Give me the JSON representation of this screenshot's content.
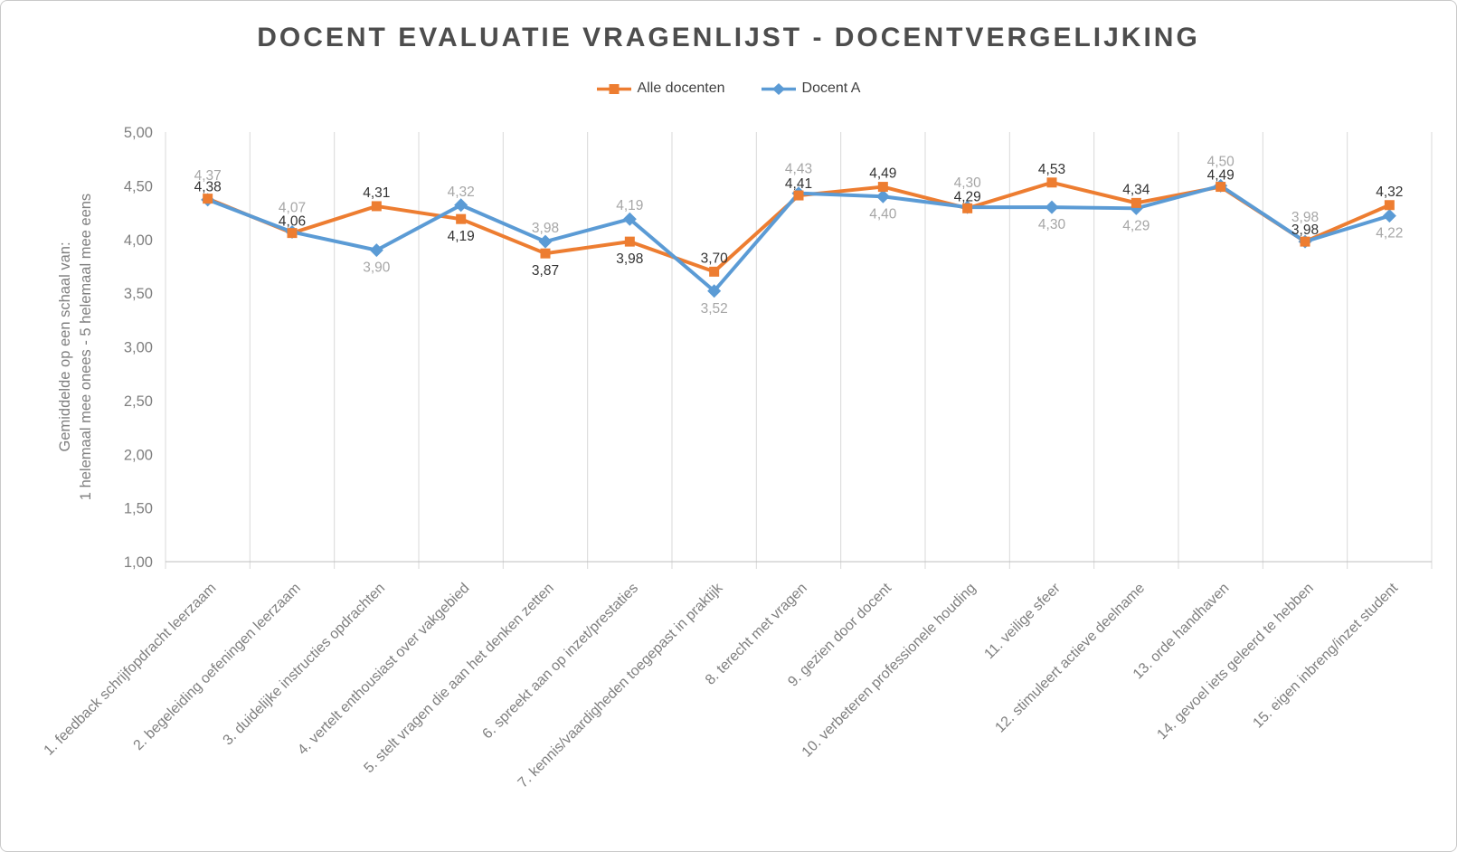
{
  "page": {
    "background_color": "#FFFFFF",
    "border_color": "#C9C9C9"
  },
  "chart_data": {
    "type": "line",
    "title": "DOCENT EVALUATIE VRAGENLIJST - DOCENTVERGELIJKING",
    "legend_position": "top",
    "grid": "vertical-category-lines-only",
    "y_axis": {
      "title_lines": [
        "Gemiddelde op een schaal van:",
        "1 helemaal mee onees - 5 helemaal mee eens"
      ],
      "min": 1,
      "max": 5,
      "step": 0.5,
      "tick_labels": [
        "5,00",
        "4,50",
        "4,00",
        "3,50",
        "3,00",
        "2,50",
        "2,00",
        "1,50",
        "1,00"
      ],
      "decimal_separator": ","
    },
    "categories": [
      "1. feedback schrijfopdracht leerzaam",
      "2. begeleiding oefeningen leerzaam",
      "3. duidelijke instructies opdrachten",
      "4. vertelt enthousiast over vakgebied",
      "5. stelt vragen die aan het denken zetten",
      "6. spreekt aan op inzet/prestaties",
      "7. kennis/vaardigheden toegepast in praktijk",
      "8. terecht met vragen",
      "9. gezien door docent",
      "10. verbeteren professionele houding",
      "11. veilige sfeer",
      "12. stimuleert actieve deelname",
      "13. orde handhaven",
      "14. gevoel iets geleerd te hebben",
      "15. eigen inbreng/inzet student"
    ],
    "series": [
      {
        "name": "Alle docenten",
        "color": "#ED7D31",
        "marker": "square",
        "label_color": "#333333",
        "values": [
          4.38,
          4.06,
          4.31,
          4.19,
          3.87,
          3.98,
          3.7,
          4.41,
          4.49,
          4.29,
          4.53,
          4.34,
          4.49,
          3.98,
          4.32
        ],
        "labels": [
          "4,38",
          "4,06",
          "4,31",
          "4,19",
          "3,87",
          "3,98",
          "3,70",
          "4,41",
          "4,49",
          "4,29",
          "4,53",
          "4,34",
          "4,49",
          "3,98",
          "4,32"
        ]
      },
      {
        "name": "Docent A",
        "color": "#5B9BD5",
        "marker": "diamond",
        "label_color": "#A6A6A6",
        "values": [
          4.37,
          4.07,
          3.9,
          4.32,
          3.98,
          4.19,
          3.52,
          4.43,
          4.4,
          4.3,
          4.3,
          4.29,
          4.5,
          3.98,
          4.22
        ],
        "labels": [
          "4,37",
          "4,07",
          "3,90",
          "4,32",
          "3,98",
          "4,19",
          "3,52",
          "4,43",
          "4,40",
          "4,30",
          "4,30",
          "4,29",
          "4,50",
          "3,98",
          "4,22"
        ]
      }
    ],
    "styles": {
      "gridline_color": "#D9D9D9",
      "axis_line_color": "#BFBFBF",
      "tick_label_color": "#7F7F7F",
      "category_label_color": "#7F7F7F",
      "axis_title_color": "#7F7F7F"
    }
  }
}
